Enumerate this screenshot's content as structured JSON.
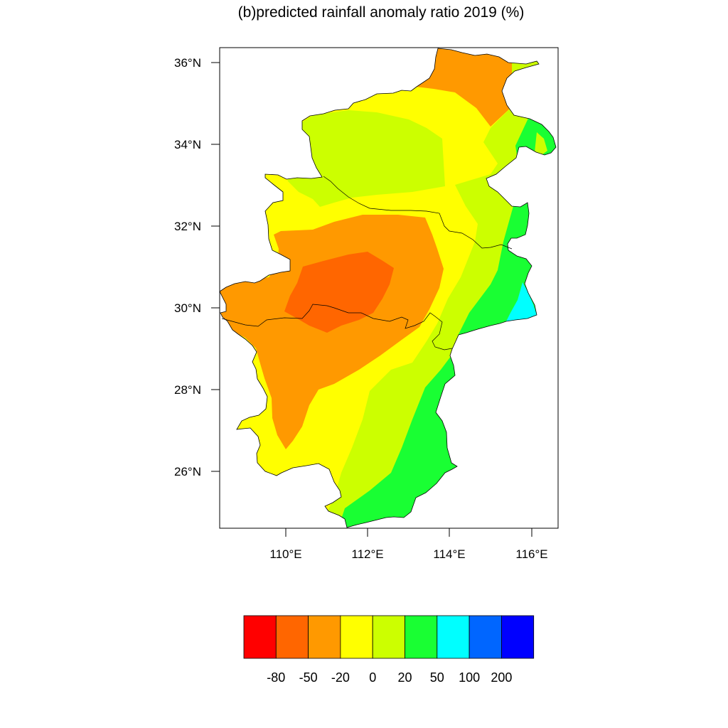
{
  "title": "(b)predicted rainfall anomaly ratio 2019 (%)",
  "lat_ticks": [
    "36°N",
    "34°N",
    "32°N",
    "30°N",
    "28°N",
    "26°N"
  ],
  "lon_ticks": [
    "110°E",
    "112°E",
    "114°E",
    "116°E"
  ],
  "colorbar": {
    "colors": [
      "#ff0000",
      "#ff6600",
      "#ff9900",
      "#ffff00",
      "#ccff00",
      "#19ff33",
      "#00ffff",
      "#0066ff",
      "#0000ff"
    ],
    "labels": [
      "-80",
      "-50",
      "-20",
      "0",
      "20",
      "50",
      "100",
      "200"
    ]
  },
  "chart_data": {
    "type": "heatmap",
    "title": "(b)predicted rainfall anomaly ratio 2019 (%)",
    "xlabel": "",
    "ylabel": "",
    "x_ticks": [
      "110°E",
      "112°E",
      "114°E",
      "116°E"
    ],
    "y_ticks": [
      "36°N",
      "34°N",
      "32°N",
      "30°N",
      "28°N",
      "26°N"
    ],
    "xlim": [
      108.4,
      116.65
    ],
    "ylim": [
      24.6,
      36.4
    ],
    "levels": [
      -80,
      -50,
      -20,
      0,
      20,
      50,
      100,
      200
    ],
    "colors": [
      "#ff0000",
      "#ff6600",
      "#ff9900",
      "#ffff00",
      "#ccff00",
      "#19ff33",
      "#00ffff",
      "#0066ff",
      "#0000ff"
    ],
    "grid": false,
    "legend": "bottom"
  }
}
